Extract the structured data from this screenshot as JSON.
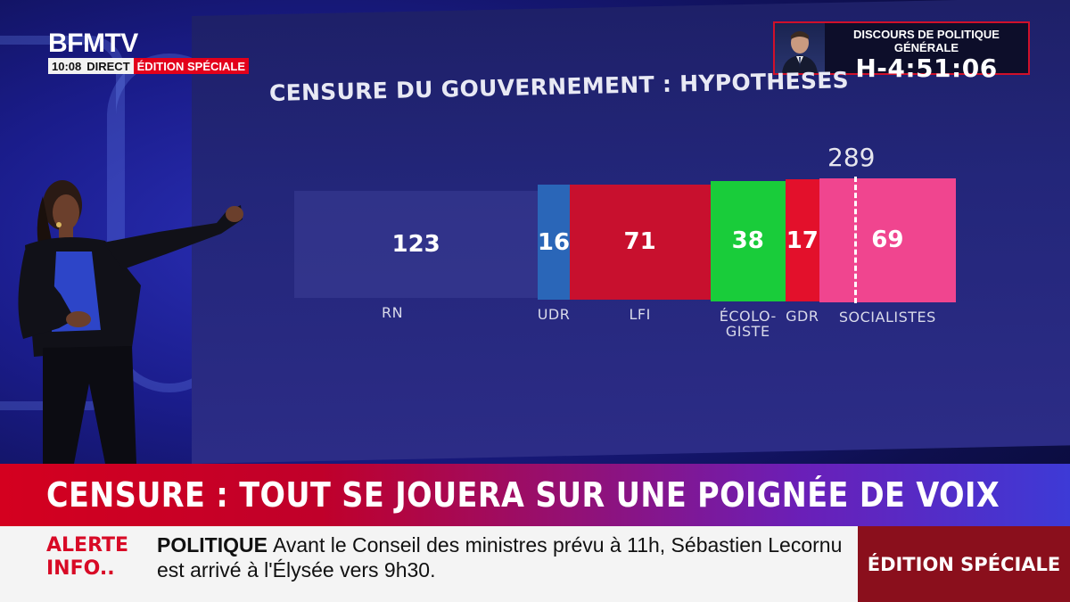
{
  "channel": {
    "logo": "BFMTV",
    "time": "10:08",
    "direct": "DIRECT",
    "edition": "ÉDITION SPÉCIALE"
  },
  "countdown": {
    "title": "DISCOURS DE POLITIQUE GÉNÉRALE",
    "timer": "H-4:51:06"
  },
  "chart_data": {
    "type": "bar",
    "title": "CENSURE DU GOUVERNEMENT : HYPOTHESES",
    "stacked": true,
    "total_label": "289",
    "categories": [
      "RN",
      "UDR",
      "LFI",
      "ÉCOLO-GISTE",
      "GDR",
      "SOCIALISTES"
    ],
    "values": [
      123,
      16,
      71,
      38,
      17,
      69
    ],
    "colors": [
      "#3a3c96",
      "#2a66b8",
      "#c8102e",
      "#19cc3a",
      "#e3102b",
      "#f0458f"
    ]
  },
  "headline": "CENSURE : TOUT SE JOUERA SUR UNE POIGNÉE DE VOIX",
  "ticker": {
    "alert_line1": "ALERTE",
    "alert_line2": "INFO",
    "category": "POLITIQUE",
    "text": "Avant le Conseil des ministres prévu à 11h, Sébastien Lecornu est arrivé à l'Élysée vers 9h30.",
    "edition_tab": "ÉDITION SPÉCIALE"
  }
}
